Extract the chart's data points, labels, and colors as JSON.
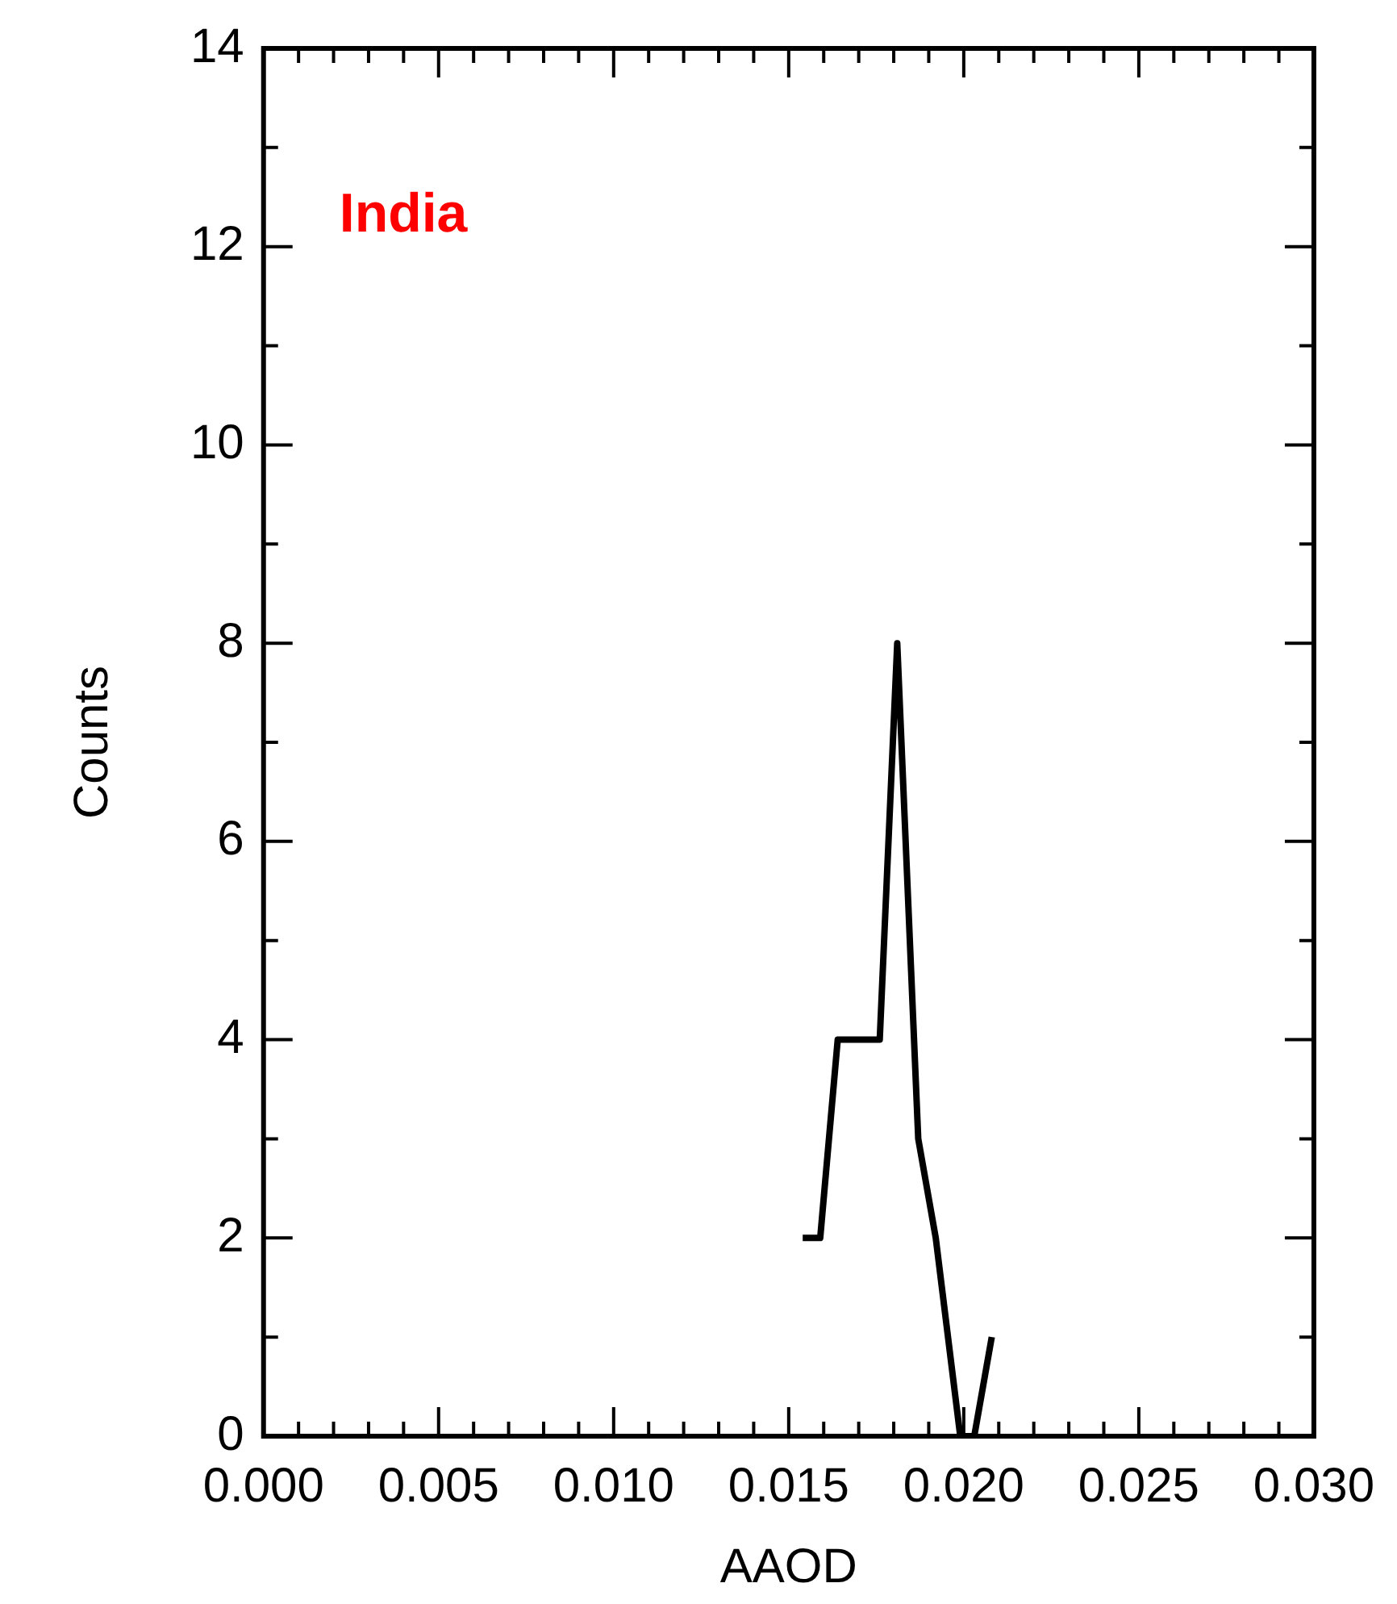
{
  "chart_data": {
    "type": "line",
    "xlabel": "AAOD",
    "ylabel": "Counts",
    "annotations": [
      "India"
    ],
    "x": [
      0.0154,
      0.0159,
      0.0164,
      0.0176,
      0.0181,
      0.0187,
      0.0192,
      0.0199,
      0.0203,
      0.0208
    ],
    "series": [
      {
        "color": "#000000",
        "values": [
          2,
          2,
          4,
          4,
          8,
          3,
          2,
          0,
          0,
          1
        ]
      }
    ],
    "xlim": [
      0,
      0.03
    ],
    "xticks": [
      {
        "value": 0,
        "label": "0.000"
      },
      {
        "value": 0.005,
        "label": "0.005"
      },
      {
        "value": 0.01,
        "label": "0.010"
      },
      {
        "value": 0.015,
        "label": "0.015"
      },
      {
        "value": 0.02,
        "label": "0.020"
      },
      {
        "value": 0.025,
        "label": "0.025"
      },
      {
        "value": 0.03,
        "label": "0.030"
      }
    ],
    "ylim": [
      0,
      14
    ],
    "yticks": [
      0,
      2,
      4,
      6,
      8,
      10,
      12,
      14
    ],
    "grid": false,
    "legend": false,
    "marker": "none",
    "line_style": "solid"
  }
}
